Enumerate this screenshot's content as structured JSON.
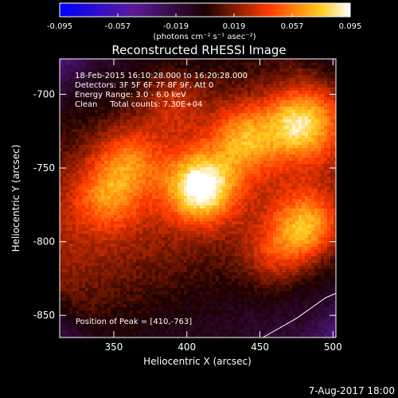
{
  "chart_data": {
    "type": "heatmap",
    "title": "Reconstructed RHESSI Image",
    "xlabel": "Heliocentric X (arcsec)",
    "ylabel": "Heliocentric Y (arcsec)",
    "xlim": [
      313,
      502
    ],
    "ylim": [
      -865,
      -676
    ],
    "x_ticks": [
      350,
      400,
      450,
      500
    ],
    "y_ticks": [
      -700,
      -750,
      -800,
      -850
    ],
    "colorbar": {
      "range": [
        -0.095,
        0.095
      ],
      "ticks": [
        "-0.095",
        "-0.057",
        "-0.019",
        "0.019",
        "0.057",
        "0.095"
      ],
      "unit_label": "(photons cm⁻² s⁻¹ asec⁻²)"
    },
    "peak": [
      410,
      -763
    ],
    "hot_spots": [
      {
        "x": 410,
        "y": -763,
        "value": 0.095
      },
      {
        "x": 478,
        "y": -720,
        "value": 0.074
      },
      {
        "x": 482,
        "y": -790,
        "value": 0.07
      },
      {
        "x": 440,
        "y": -730,
        "value": 0.055
      },
      {
        "x": 360,
        "y": -745,
        "value": 0.045
      },
      {
        "x": 345,
        "y": -770,
        "value": 0.04
      },
      {
        "x": 390,
        "y": -705,
        "value": 0.03
      },
      {
        "x": 460,
        "y": -810,
        "value": 0.035
      }
    ],
    "limb_curve": [
      [
        452,
        -865
      ],
      [
        475,
        -852
      ],
      [
        495,
        -838
      ],
      [
        502,
        -835
      ]
    ]
  },
  "info": {
    "line1": "18-Feb-2015 16:10:28.000 to 16:20:28.000",
    "line2": "Detectors: 3F 5F 6F 7F 8F 9F, Att 0",
    "line3": "Energy Range: 3.0 - 6.0 keV",
    "line4": "Clean     Total counts: 7.30E+04",
    "peak_text": "Position of Peak = [410,-763]"
  },
  "timestamp": "7-Aug-2017 18:00"
}
